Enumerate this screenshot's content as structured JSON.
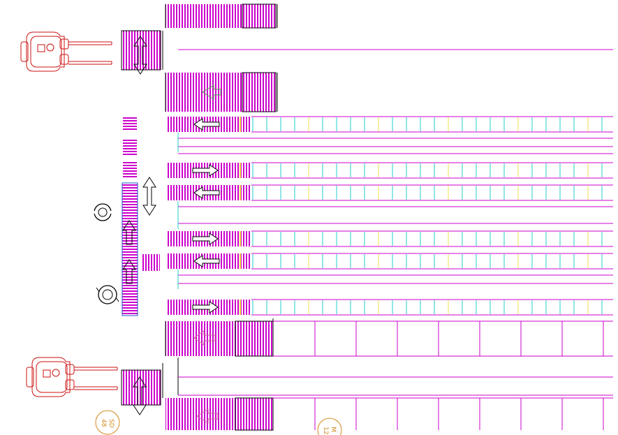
{
  "title": "",
  "colors": {
    "line": "#cc00cc",
    "hatch": "#cc00cc",
    "cell": "#22cccc",
    "cell_alt": "#f2e24a",
    "forklift": "#cc1111",
    "arrow": "#000000",
    "label": "#d08a1a",
    "ghost": "#55aa55"
  },
  "labels": {
    "badge_1_line1": "SD",
    "badge_1_line2": "48",
    "badge_2_line1": "M",
    "badge_2_line2": "12"
  },
  "elements": {
    "forklifts": [
      "forklift-top",
      "forklift-bottom"
    ],
    "conveyor_rows": 8,
    "icons": [
      "forklift-icon",
      "rotate-icon",
      "double-arrow-icon",
      "direction-arrow-icon"
    ]
  }
}
